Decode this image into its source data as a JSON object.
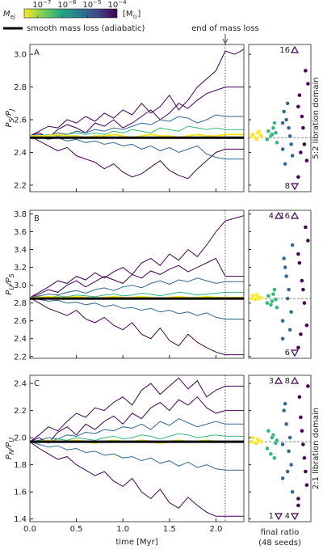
{
  "header": {
    "colorbar": {
      "label": "M",
      "label_sub": "ej",
      "unit_open": "[M",
      "unit_sub": "⊙",
      "unit_close": "]",
      "scale": "log",
      "lim": [
        3e-08,
        0.00015
      ],
      "colormap": [
        "#fde725",
        "#7ad151",
        "#22a884",
        "#2a788e",
        "#414487",
        "#440154"
      ],
      "ticks": [
        {
          "value": 1e-07,
          "base": "10",
          "exp": "−7"
        },
        {
          "value": 1e-06,
          "base": "10",
          "exp": "−6"
        },
        {
          "value": 1e-05,
          "base": "10",
          "exp": "−5"
        },
        {
          "value": 0.0001,
          "base": "10",
          "exp": "−4"
        }
      ]
    },
    "legend": {
      "text": "smooth mass loss (adiabatic)",
      "color": "#000000"
    },
    "end_of_mass_loss": {
      "text": "end of mass loss",
      "time": 2.1
    }
  },
  "chart_data": [
    {
      "type": "line",
      "panel_label": "A",
      "ylabel": {
        "p1": "P",
        "s1": "S",
        "slash": "/",
        "p2": "P",
        "s2": "J"
      },
      "domain_label": "5:2 libration domain",
      "xlim": [
        0,
        2.3
      ],
      "xticks": [
        {
          "value": 0,
          "label": "0.0"
        },
        0.5,
        {
          "value": 1,
          "label": "1.0"
        },
        1.5,
        {
          "value": 2,
          "label": "2.0"
        }
      ],
      "ylim": [
        2.16,
        3.06
      ],
      "yticks": [
        2.2,
        2.4,
        2.6,
        2.8,
        {
          "value": 3,
          "label": "3.0"
        }
      ],
      "smooth": 2.49,
      "x": [
        0,
        0.1,
        0.2,
        0.3,
        0.4,
        0.5,
        0.6,
        0.7,
        0.8,
        0.9,
        1.0,
        1.1,
        1.2,
        1.3,
        1.4,
        1.5,
        1.6,
        1.7,
        1.8,
        1.9,
        2.0,
        2.1,
        2.2,
        2.3
      ],
      "series": [
        {
          "color": "#440154",
          "values": [
            2.5,
            2.53,
            2.56,
            2.55,
            2.6,
            2.58,
            2.62,
            2.59,
            2.64,
            2.61,
            2.66,
            2.63,
            2.7,
            2.64,
            2.68,
            2.75,
            2.66,
            2.72,
            2.8,
            2.85,
            2.9,
            3.02,
            3.0,
            3.03
          ]
        },
        {
          "color": "#440154",
          "values": [
            2.5,
            2.47,
            2.44,
            2.41,
            2.43,
            2.38,
            2.36,
            2.34,
            2.3,
            2.33,
            2.28,
            2.25,
            2.27,
            2.31,
            2.35,
            2.29,
            2.26,
            2.24,
            2.3,
            2.35,
            2.4,
            2.42,
            2.42,
            2.42
          ]
        },
        {
          "color": "#440154",
          "values": [
            2.5,
            2.52,
            2.49,
            2.54,
            2.57,
            2.55,
            2.52,
            2.58,
            2.56,
            2.6,
            2.55,
            2.58,
            2.62,
            2.66,
            2.6,
            2.64,
            2.7,
            2.67,
            2.72,
            2.76,
            2.78,
            2.8,
            2.8,
            2.8
          ]
        },
        {
          "color": "#31688e",
          "values": [
            2.5,
            2.51,
            2.5,
            2.52,
            2.51,
            2.53,
            2.52,
            2.54,
            2.53,
            2.55,
            2.54,
            2.56,
            2.58,
            2.57,
            2.6,
            2.59,
            2.62,
            2.61,
            2.58,
            2.6,
            2.63,
            2.62,
            2.62,
            2.62
          ]
        },
        {
          "color": "#31688e",
          "values": [
            2.5,
            2.49,
            2.48,
            2.49,
            2.47,
            2.48,
            2.46,
            2.47,
            2.45,
            2.46,
            2.44,
            2.45,
            2.42,
            2.44,
            2.41,
            2.43,
            2.4,
            2.42,
            2.44,
            2.39,
            2.37,
            2.36,
            2.36,
            2.36
          ]
        },
        {
          "color": "#35b779",
          "values": [
            2.5,
            2.5,
            2.51,
            2.5,
            2.51,
            2.52,
            2.51,
            2.52,
            2.51,
            2.53,
            2.52,
            2.54,
            2.53,
            2.52,
            2.55,
            2.54,
            2.53,
            2.56,
            2.55,
            2.54,
            2.55,
            2.54,
            2.54,
            2.54
          ]
        },
        {
          "color": "#fde725",
          "values": [
            2.5,
            2.5,
            2.5,
            2.51,
            2.5,
            2.5,
            2.49,
            2.5,
            2.5,
            2.51,
            2.5,
            2.49,
            2.5,
            2.51,
            2.5,
            2.5,
            2.49,
            2.5,
            2.51,
            2.5,
            2.5,
            2.51,
            2.51,
            2.51
          ]
        }
      ],
      "final": [
        {
          "color": "#fde725",
          "values": [
            2.5,
            2.51,
            2.52,
            2.49,
            2.51,
            2.5,
            2.53,
            2.48
          ]
        },
        {
          "color": "#35b779",
          "values": [
            2.48,
            2.52,
            2.55,
            2.5,
            2.53,
            2.46,
            2.58,
            2.51
          ]
        },
        {
          "color": "#31688e",
          "values": [
            2.42,
            2.45,
            2.55,
            2.6,
            2.65,
            2.38,
            2.5,
            2.7,
            2.33,
            2.58
          ]
        },
        {
          "color": "#440154",
          "values": [
            2.25,
            2.35,
            2.45,
            2.62,
            2.75,
            2.82,
            2.9,
            2.55,
            2.4,
            2.68
          ]
        }
      ],
      "overflow": [
        {
          "text": "16",
          "side": "top"
        },
        {
          "text": "8",
          "side": "bottom"
        }
      ]
    },
    {
      "type": "line",
      "panel_label": "B",
      "ylabel": {
        "p1": "P",
        "s1": "U",
        "slash": "/",
        "p2": "P",
        "s2": "S"
      },
      "xlim": [
        0,
        2.3
      ],
      "xticks": [
        {
          "value": 0,
          "label": "0.0"
        },
        0.5,
        {
          "value": 1,
          "label": "1.0"
        },
        1.5,
        {
          "value": 2,
          "label": "2.0"
        }
      ],
      "ylim": [
        2.18,
        3.84
      ],
      "yticks": [
        2.2,
        2.4,
        2.6,
        2.8,
        {
          "value": 3,
          "label": "3.0"
        },
        3.2,
        3.4,
        3.6,
        3.8
      ],
      "smooth": 2.85,
      "x": [
        0,
        0.1,
        0.2,
        0.3,
        0.4,
        0.5,
        0.6,
        0.7,
        0.8,
        0.9,
        1.0,
        1.1,
        1.2,
        1.3,
        1.4,
        1.5,
        1.6,
        1.7,
        1.8,
        1.9,
        2.0,
        2.1,
        2.2,
        2.3
      ],
      "series": [
        {
          "color": "#440154",
          "values": [
            2.86,
            2.92,
            2.98,
            3.05,
            3.02,
            3.1,
            3.06,
            3.14,
            3.08,
            3.15,
            3.2,
            3.12,
            3.25,
            3.3,
            3.22,
            3.35,
            3.28,
            3.4,
            3.32,
            3.45,
            3.6,
            3.72,
            3.75,
            3.78
          ]
        },
        {
          "color": "#440154",
          "values": [
            2.86,
            2.8,
            2.74,
            2.7,
            2.66,
            2.72,
            2.62,
            2.58,
            2.64,
            2.55,
            2.5,
            2.58,
            2.45,
            2.4,
            2.52,
            2.38,
            2.32,
            2.45,
            2.36,
            2.3,
            2.25,
            2.22,
            2.22,
            2.22
          ]
        },
        {
          "color": "#440154",
          "values": [
            2.86,
            2.9,
            2.95,
            2.92,
            3.0,
            3.05,
            2.98,
            3.04,
            3.1,
            3.06,
            3.02,
            3.12,
            3.08,
            3.16,
            3.12,
            3.18,
            3.22,
            3.15,
            3.2,
            3.25,
            3.3,
            3.1,
            3.1,
            3.1
          ]
        },
        {
          "color": "#31688e",
          "values": [
            2.86,
            2.88,
            2.9,
            2.89,
            2.92,
            2.94,
            2.91,
            2.95,
            2.97,
            2.94,
            2.98,
            3.0,
            2.97,
            3.02,
            3.05,
            3.01,
            3.06,
            3.04,
            3.08,
            3.05,
            3.02,
            3.04,
            3.04,
            3.04
          ]
        },
        {
          "color": "#31688e",
          "values": [
            2.86,
            2.84,
            2.82,
            2.83,
            2.8,
            2.81,
            2.78,
            2.8,
            2.76,
            2.78,
            2.74,
            2.75,
            2.72,
            2.74,
            2.7,
            2.72,
            2.68,
            2.7,
            2.66,
            2.69,
            2.64,
            2.62,
            2.62,
            2.62
          ]
        },
        {
          "color": "#35b779",
          "values": [
            2.86,
            2.87,
            2.86,
            2.88,
            2.87,
            2.89,
            2.88,
            2.87,
            2.89,
            2.9,
            2.88,
            2.89,
            2.91,
            2.9,
            2.88,
            2.9,
            2.92,
            2.91,
            2.89,
            2.9,
            2.91,
            2.92,
            2.92,
            2.92
          ]
        },
        {
          "color": "#fde725",
          "values": [
            2.86,
            2.86,
            2.87,
            2.86,
            2.86,
            2.87,
            2.86,
            2.85,
            2.86,
            2.87,
            2.86,
            2.86,
            2.87,
            2.86,
            2.85,
            2.86,
            2.87,
            2.86,
            2.86,
            2.87,
            2.86,
            2.86,
            2.86,
            2.86
          ]
        }
      ],
      "final": [
        {
          "color": "#fde725",
          "values": [
            2.85,
            2.86,
            2.87,
            2.84,
            2.88,
            2.86,
            2.85,
            2.89
          ]
        },
        {
          "color": "#35b779",
          "values": [
            2.8,
            2.84,
            2.9,
            2.78,
            2.88,
            2.75,
            2.95,
            2.82
          ]
        },
        {
          "color": "#31688e",
          "values": [
            2.6,
            2.7,
            2.95,
            3.1,
            3.3,
            3.45,
            2.5,
            2.85,
            3.2,
            2.4
          ]
        },
        {
          "color": "#440154",
          "values": [
            2.3,
            2.55,
            2.8,
            3.05,
            3.25,
            3.5,
            3.65,
            2.95,
            2.45,
            3.35
          ]
        }
      ],
      "overflow": [
        {
          "text": "16",
          "side": "top"
        },
        {
          "text": "4",
          "side": "top"
        },
        {
          "text": "6",
          "side": "bottom"
        }
      ]
    },
    {
      "type": "line",
      "panel_label": "C",
      "ylabel": {
        "p1": "P",
        "s1": "N",
        "slash": "/",
        "p2": "P",
        "s2": "U"
      },
      "domain_label": "2:1 libration domain",
      "xlabel": "time  [Myr]",
      "final_xlabel": [
        "final ratio",
        "(48 seeds)"
      ],
      "xlim": [
        0,
        2.3
      ],
      "xticks": [
        {
          "value": 0,
          "label": "0.0"
        },
        0.5,
        {
          "value": 1,
          "label": "1.0"
        },
        1.5,
        {
          "value": 2,
          "label": "2.0"
        }
      ],
      "ylim": [
        1.38,
        2.46
      ],
      "yticks": [
        1.4,
        1.6,
        1.8,
        {
          "value": 2,
          "label": "2.0"
        },
        2.2,
        2.4
      ],
      "smooth": 1.97,
      "x": [
        0,
        0.1,
        0.2,
        0.3,
        0.4,
        0.5,
        0.6,
        0.7,
        0.8,
        0.9,
        1.0,
        1.1,
        1.2,
        1.3,
        1.4,
        1.5,
        1.6,
        1.7,
        1.8,
        1.9,
        2.0,
        2.1,
        2.2,
        2.3
      ],
      "series": [
        {
          "color": "#440154",
          "values": [
            1.97,
            2.02,
            2.08,
            2.05,
            2.12,
            2.18,
            2.15,
            2.22,
            2.2,
            2.26,
            2.3,
            2.24,
            2.35,
            2.4,
            2.32,
            2.38,
            2.44,
            2.36,
            2.42,
            2.3,
            2.35,
            2.38,
            2.38,
            2.38
          ]
        },
        {
          "color": "#440154",
          "values": [
            1.97,
            1.92,
            1.88,
            1.84,
            1.86,
            1.8,
            1.76,
            1.72,
            1.75,
            1.68,
            1.64,
            1.7,
            1.6,
            1.55,
            1.62,
            1.52,
            1.48,
            1.56,
            1.5,
            1.45,
            1.42,
            1.42,
            1.42,
            1.42
          ]
        },
        {
          "color": "#440154",
          "values": [
            1.97,
            2.0,
            1.96,
            2.04,
            2.08,
            2.02,
            2.1,
            2.06,
            2.12,
            2.16,
            2.1,
            2.18,
            2.14,
            2.22,
            2.26,
            2.2,
            2.28,
            2.24,
            2.3,
            2.22,
            2.18,
            2.2,
            2.2,
            2.2
          ]
        },
        {
          "color": "#31688e",
          "values": [
            1.97,
            1.98,
            2.0,
            1.99,
            2.02,
            2.01,
            2.04,
            2.03,
            2.06,
            2.05,
            2.08,
            2.07,
            2.1,
            2.06,
            2.12,
            2.09,
            2.14,
            2.11,
            2.08,
            2.1,
            2.12,
            2.1,
            2.1,
            2.1
          ]
        },
        {
          "color": "#31688e",
          "values": [
            1.97,
            1.95,
            1.93,
            1.94,
            1.91,
            1.92,
            1.89,
            1.9,
            1.87,
            1.88,
            1.85,
            1.86,
            1.83,
            1.85,
            1.81,
            1.83,
            1.79,
            1.82,
            1.78,
            1.8,
            1.77,
            1.76,
            1.76,
            1.76
          ]
        },
        {
          "color": "#35b779",
          "values": [
            1.97,
            1.98,
            1.97,
            1.99,
            1.98,
            2.0,
            1.99,
            1.98,
            2.0,
            2.01,
            1.99,
            2.0,
            2.02,
            2.01,
            1.99,
            2.01,
            2.03,
            2.02,
            2.0,
            2.01,
            2.02,
            2.01,
            2.01,
            2.01
          ]
        },
        {
          "color": "#fde725",
          "values": [
            1.97,
            1.97,
            1.98,
            1.97,
            1.97,
            1.98,
            1.97,
            1.96,
            1.97,
            1.98,
            1.97,
            1.97,
            1.98,
            1.97,
            1.96,
            1.97,
            1.98,
            1.97,
            1.97,
            1.98,
            1.97,
            1.97,
            1.97,
            1.97
          ]
        }
      ],
      "final": [
        {
          "color": "#fde725",
          "values": [
            1.97,
            1.98,
            1.99,
            1.96,
            2.0,
            1.97,
            1.98,
            1.96
          ]
        },
        {
          "color": "#35b779",
          "values": [
            1.92,
            1.96,
            2.02,
            1.88,
            2.05,
            1.98,
            1.85,
            2.0
          ]
        },
        {
          "color": "#31688e",
          "values": [
            1.7,
            1.8,
            1.9,
            2.1,
            2.2,
            1.6,
            2.0,
            1.75,
            2.25,
            1.95
          ]
        },
        {
          "color": "#440154",
          "values": [
            1.55,
            1.65,
            1.85,
            2.05,
            2.3,
            2.38,
            1.75,
            1.95,
            2.15,
            1.5
          ]
        }
      ],
      "overflow": [
        {
          "text": "8",
          "side": "top"
        },
        {
          "text": "3",
          "side": "top"
        },
        {
          "text": "4",
          "side": "bottom"
        },
        {
          "text": "1",
          "side": "bottom"
        }
      ]
    }
  ]
}
